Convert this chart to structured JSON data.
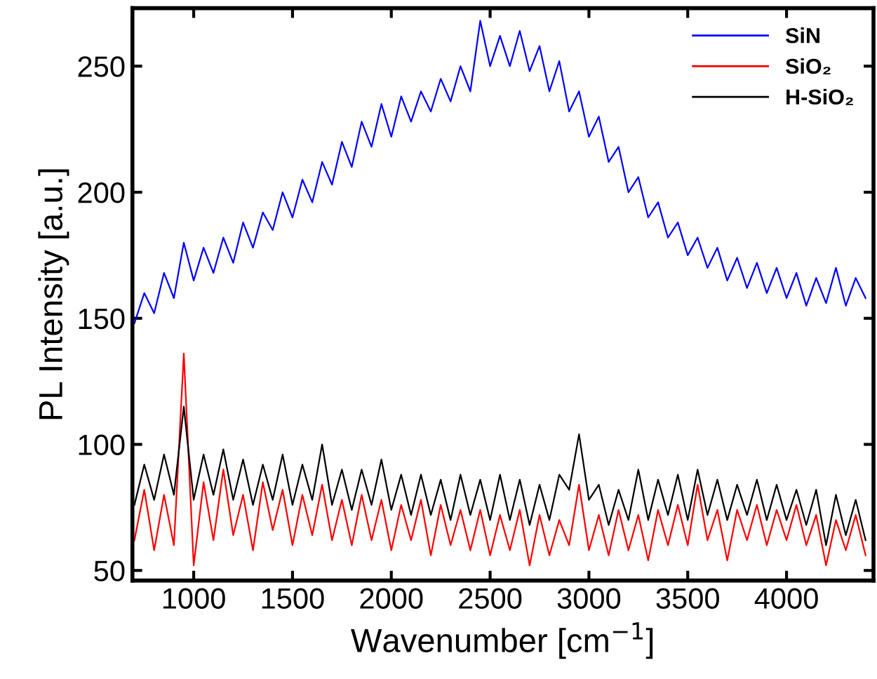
{
  "chart_data": {
    "type": "line",
    "xlabel": "Wavenumber [cm$^{−1}$]",
    "ylabel": "PL Intensity [a.u.]",
    "x": [
      700,
      750,
      800,
      850,
      900,
      950,
      1000,
      1050,
      1100,
      1150,
      1200,
      1250,
      1300,
      1350,
      1400,
      1450,
      1500,
      1550,
      1600,
      1650,
      1700,
      1750,
      1800,
      1850,
      1900,
      1950,
      2000,
      2050,
      2100,
      2150,
      2200,
      2250,
      2300,
      2350,
      2400,
      2450,
      2500,
      2550,
      2600,
      2650,
      2700,
      2750,
      2800,
      2850,
      2900,
      2950,
      3000,
      3050,
      3100,
      3150,
      3200,
      3250,
      3300,
      3350,
      3400,
      3450,
      3500,
      3550,
      3600,
      3650,
      3700,
      3750,
      3800,
      3850,
      3900,
      3950,
      4000,
      4050,
      4100,
      4150,
      4200,
      4250,
      4300,
      4350,
      4400
    ],
    "series": [
      {
        "name": "SiN",
        "color": "#0000ff",
        "values": [
          148,
          160,
          152,
          168,
          158,
          180,
          165,
          178,
          168,
          182,
          172,
          188,
          178,
          192,
          185,
          200,
          190,
          205,
          196,
          212,
          203,
          220,
          210,
          228,
          218,
          235,
          222,
          238,
          228,
          240,
          232,
          245,
          236,
          250,
          240,
          268,
          250,
          262,
          250,
          264,
          248,
          258,
          240,
          252,
          232,
          240,
          222,
          230,
          212,
          218,
          200,
          206,
          190,
          196,
          182,
          188,
          175,
          182,
          170,
          178,
          165,
          174,
          162,
          172,
          160,
          170,
          158,
          168,
          155,
          166,
          156,
          170,
          155,
          166,
          158
        ]
      },
      {
        "name": "SiO₂",
        "color": "#ff0000",
        "values": [
          62,
          82,
          58,
          80,
          60,
          136,
          52,
          85,
          62,
          90,
          64,
          80,
          58,
          85,
          66,
          82,
          60,
          80,
          64,
          84,
          62,
          78,
          60,
          80,
          62,
          78,
          58,
          76,
          62,
          78,
          56,
          76,
          60,
          74,
          58,
          74,
          56,
          72,
          58,
          74,
          52,
          72,
          56,
          70,
          60,
          84,
          58,
          72,
          56,
          74,
          58,
          72,
          54,
          74,
          60,
          76,
          60,
          84,
          62,
          74,
          54,
          74,
          62,
          76,
          60,
          74,
          62,
          76,
          60,
          72,
          52,
          70,
          58,
          72,
          56
        ]
      },
      {
        "name": "H-SiO₂",
        "color": "#000000",
        "values": [
          76,
          92,
          78,
          96,
          80,
          115,
          78,
          96,
          80,
          98,
          78,
          94,
          76,
          92,
          78,
          96,
          76,
          92,
          78,
          100,
          76,
          90,
          74,
          90,
          76,
          94,
          74,
          88,
          72,
          88,
          72,
          86,
          70,
          88,
          72,
          86,
          70,
          88,
          70,
          86,
          68,
          84,
          70,
          88,
          82,
          104,
          78,
          84,
          68,
          82,
          70,
          90,
          70,
          86,
          72,
          88,
          70,
          90,
          72,
          86,
          70,
          84,
          72,
          86,
          70,
          84,
          70,
          82,
          68,
          82,
          60,
          80,
          64,
          78,
          62
        ]
      }
    ],
    "xlim": [
      690,
      4440
    ],
    "ylim": [
      46,
      273
    ],
    "xticks": [
      1000,
      1500,
      2000,
      2500,
      3000,
      3500,
      4000
    ],
    "yticks": [
      50,
      100,
      150,
      200,
      250
    ],
    "grid": false,
    "legend": "top right",
    "marker": "none",
    "line_style": "solid"
  }
}
